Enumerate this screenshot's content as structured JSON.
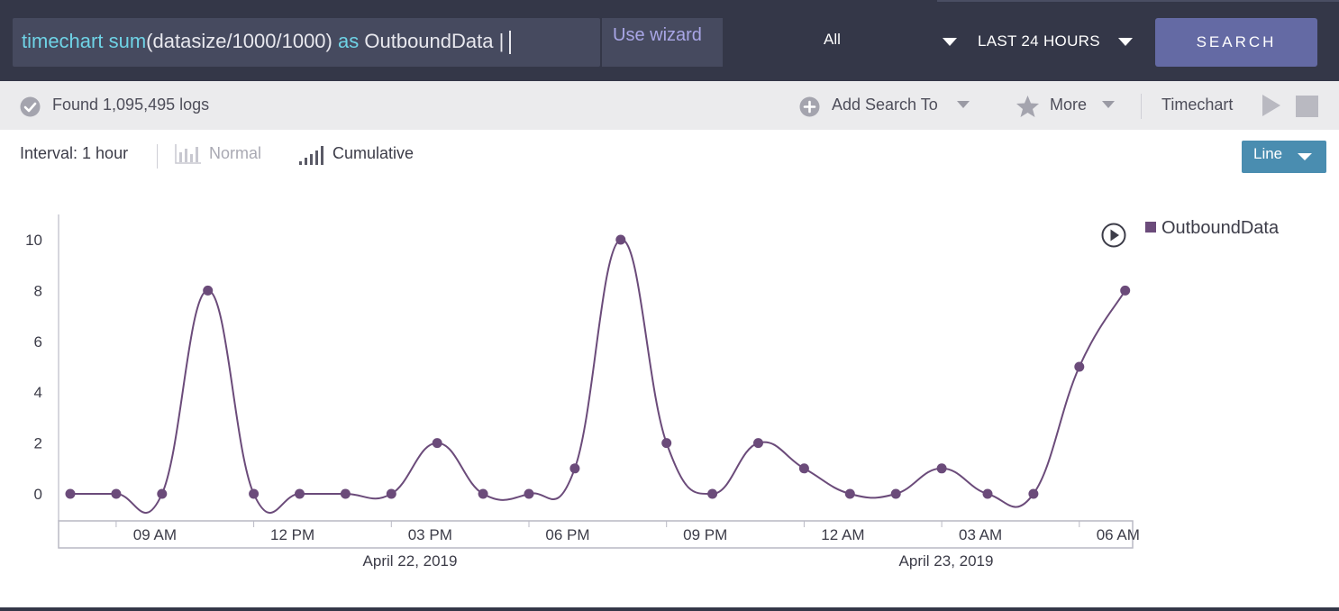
{
  "header": {
    "query_keyword1": "timechart",
    "query_keyword2": "sum",
    "query_args": "(datasize/1000/1000)",
    "query_keyword3": "as",
    "query_alias": "OutboundData",
    "query_pipe": "|",
    "wizard_label": "Use wizard",
    "source_label": "All",
    "time_range_label": "LAST 24 HOURS",
    "search_label": "SEARCH"
  },
  "toolbar": {
    "found_text": "Found 1,095,495 logs",
    "add_search_to": "Add Search To",
    "more": "More",
    "timechart": "Timechart"
  },
  "chart_controls": {
    "interval": "Interval: 1 hour",
    "normal": "Normal",
    "cumulative": "Cumulative",
    "chart_type_label": "Line"
  },
  "colors": {
    "series": "#6b4b7a",
    "header_bg": "#343748",
    "search_button": "#646aa4",
    "line_button": "#4a8db0"
  },
  "chart_data": {
    "type": "line",
    "title": "",
    "xlabel": "",
    "ylabel": "",
    "ylim": [
      0,
      10
    ],
    "yticks": [
      "0",
      "2",
      "4",
      "6",
      "8",
      "10"
    ],
    "xticks": [
      "09 AM",
      "12 PM",
      "03 PM",
      "06 PM",
      "09 PM",
      "12 AM",
      "03 AM",
      "06 AM"
    ],
    "date_labels": [
      "April 22, 2019",
      "April 23, 2019"
    ],
    "legend_position": "top-right",
    "grid": false,
    "series": [
      {
        "name": "OutboundData",
        "x": [
          "08 AM",
          "09 AM",
          "10 AM",
          "11 AM",
          "12 PM",
          "01 PM",
          "02 PM",
          "03 PM",
          "04 PM",
          "05 PM",
          "06 PM",
          "07 PM",
          "08 PM",
          "09 PM",
          "10 PM",
          "11 PM",
          "12 AM",
          "01 AM",
          "02 AM",
          "03 AM",
          "04 AM",
          "05 AM",
          "06 AM",
          "07 AM"
        ],
        "values": [
          0,
          0,
          0,
          8,
          0,
          0,
          0,
          0,
          2,
          0,
          0,
          1,
          10,
          2,
          0,
          2,
          1,
          0,
          0,
          1,
          0,
          0,
          5,
          8
        ]
      }
    ]
  }
}
